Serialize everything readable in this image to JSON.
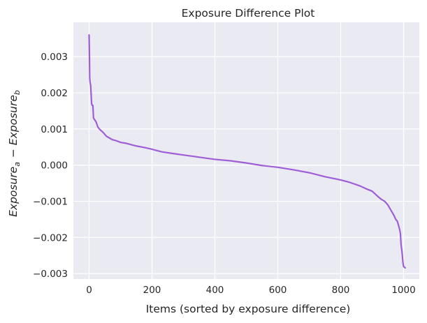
{
  "chart_data": {
    "type": "line",
    "title": "Exposure Difference Plot",
    "xlabel": "Items (sorted by exposure difference)",
    "ylabel": {
      "part1": "Exposure",
      "sub1": "a",
      "minus": " − ",
      "part2": "Exposure",
      "sub2": "b"
    },
    "xlim": [
      -50,
      1050
    ],
    "ylim": [
      -0.00315,
      0.00395
    ],
    "xticks": [
      0,
      200,
      400,
      600,
      800,
      1000
    ],
    "xtick_labels": [
      "0",
      "200",
      "400",
      "600",
      "800",
      "1000"
    ],
    "yticks": [
      -0.003,
      -0.002,
      -0.001,
      0.0,
      0.001,
      0.002,
      0.003
    ],
    "ytick_labels": [
      "−0.003",
      "−0.002",
      "−0.001",
      "0.000",
      "0.001",
      "0.002",
      "0.003"
    ],
    "grid": true,
    "series": [
      {
        "color": "#9e5fd6",
        "x": [
          0,
          1,
          2,
          3,
          4,
          5,
          8,
          10,
          12,
          14,
          18,
          22,
          28,
          35,
          45,
          55,
          65,
          75,
          85,
          100,
          120,
          150,
          180,
          200,
          230,
          260,
          300,
          350,
          400,
          450,
          500,
          550,
          600,
          650,
          700,
          750,
          800,
          830,
          860,
          880,
          900,
          910,
          920,
          930,
          940,
          950,
          960,
          970,
          975,
          980,
          985,
          988,
          990,
          992,
          995,
          998,
          1000,
          1002,
          1005
        ],
        "y": [
          0.0036,
          0.0031,
          0.0024,
          0.0023,
          0.00225,
          0.0022,
          0.0017,
          0.00165,
          0.00165,
          0.0013,
          0.00125,
          0.0012,
          0.00105,
          0.00098,
          0.0009,
          0.0008,
          0.00075,
          0.0007,
          0.00068,
          0.00063,
          0.0006,
          0.00053,
          0.00048,
          0.00044,
          0.00037,
          0.00033,
          0.00028,
          0.00022,
          0.00016,
          0.00012,
          6e-05,
          -1e-05,
          -6e-05,
          -0.00013,
          -0.00021,
          -0.00032,
          -0.00041,
          -0.00048,
          -0.00057,
          -0.00065,
          -0.00072,
          -0.0008,
          -0.00088,
          -0.00095,
          -0.001,
          -0.0011,
          -0.00125,
          -0.0014,
          -0.0015,
          -0.00155,
          -0.0017,
          -0.0018,
          -0.0019,
          -0.0022,
          -0.0024,
          -0.0027,
          -0.0028,
          -0.00282,
          -0.00284
        ]
      }
    ]
  },
  "colors": {
    "plot_background": "#eaeaf2",
    "grid": "#ffffff",
    "line": "#9e5fd6",
    "text": "#262626"
  }
}
